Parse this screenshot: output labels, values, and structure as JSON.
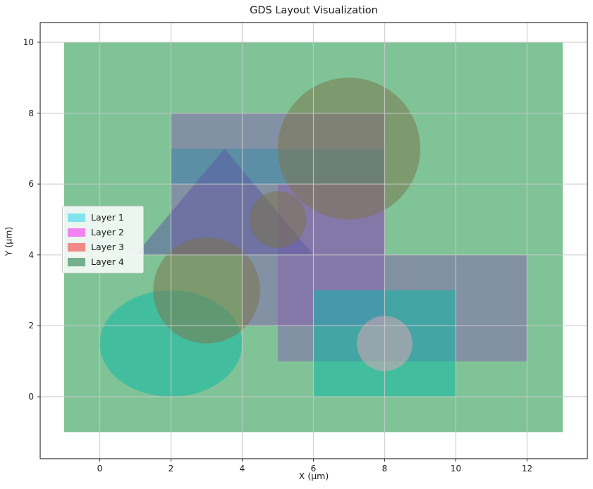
{
  "title": "GDS Layout Visualization",
  "axes": {
    "xlabel": "X (μm)",
    "ylabel": "Y (μm)",
    "x_ticks": [
      0,
      2,
      4,
      6,
      8,
      10,
      12
    ],
    "y_ticks": [
      0,
      2,
      4,
      6,
      8,
      10
    ],
    "xlim": [
      -1.7,
      13.7
    ],
    "ylim": [
      -1.75,
      10.55
    ],
    "grid": true,
    "grid_color": "#c9c9c9",
    "spine_color": "#333333",
    "tick_color": "#333333"
  },
  "legend": {
    "position": "center-left",
    "entries": [
      {
        "label": "Layer 1",
        "swatch_color": "#82E3EE"
      },
      {
        "label": "Layer 2",
        "swatch_color": "#F284F2"
      },
      {
        "label": "Layer 3",
        "swatch_color": "#EF8A86"
      },
      {
        "label": "Layer 4",
        "swatch_color": "#74B08C"
      }
    ]
  },
  "chart_data": {
    "type": "layout-shapes",
    "title": "GDS Layout Visualization",
    "xlabel": "X (μm)",
    "ylabel": "Y (μm)",
    "units": "μm",
    "shape_opacity": 0.5,
    "shapes": [
      {
        "kind": "rect",
        "name": "die-outline",
        "x": -1,
        "y": -1,
        "w": 14,
        "h": 11,
        "fill": "#00872F"
      },
      {
        "kind": "rect",
        "name": "block-upper-left",
        "x": 2,
        "y": 4,
        "w": 6,
        "h": 4,
        "fill": "#8660B0"
      },
      {
        "kind": "rect",
        "name": "block-mid-tall",
        "x": 5,
        "y": 1,
        "w": 3,
        "h": 5,
        "fill": "#8660B0"
      },
      {
        "kind": "rect",
        "name": "block-mid-wide",
        "x": 4,
        "y": 2,
        "w": 4,
        "h": 2,
        "fill": "#8660B0"
      },
      {
        "kind": "rect",
        "name": "block-right",
        "x": 8,
        "y": 1,
        "w": 4,
        "h": 3,
        "fill": "#8660B0"
      },
      {
        "kind": "rect",
        "name": "band-strip",
        "x": 2,
        "y": 6,
        "w": 6,
        "h": 1,
        "fill": "#368CAA"
      },
      {
        "kind": "rect",
        "name": "bottom-teal-rect",
        "x": 6,
        "y": 0,
        "w": 4,
        "h": 3,
        "fill": "#06B9A7"
      },
      {
        "kind": "ellipse",
        "name": "teal-ellipse",
        "cx": 2,
        "cy": 1.5,
        "rx": 2,
        "ry": 1.5,
        "fill": "#06B9A7"
      },
      {
        "kind": "triangle",
        "name": "triangle",
        "points": [
          [
            1,
            4
          ],
          [
            6,
            4
          ],
          [
            3.5,
            7
          ]
        ],
        "fill": "#5955A3"
      },
      {
        "kind": "circle",
        "name": "olive-circle-small",
        "cx": 3,
        "cy": 3,
        "r": 1.5,
        "fill": "#7C7145"
      },
      {
        "kind": "circle",
        "name": "olive-circle-tiny",
        "cx": 5,
        "cy": 5,
        "r": 0.8,
        "fill": "#7C7145"
      },
      {
        "kind": "circle",
        "name": "olive-circle-large",
        "cx": 7,
        "cy": 7,
        "r": 2,
        "fill": "#7C7145"
      },
      {
        "kind": "circle",
        "name": "pink-circle",
        "cx": 8,
        "cy": 1.5,
        "r": 0.78,
        "fill": "#E6A5B4"
      }
    ]
  }
}
